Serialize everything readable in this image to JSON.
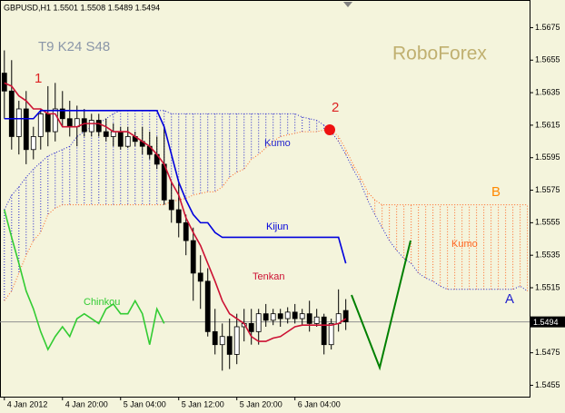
{
  "chart_data": {
    "type": "candlestick",
    "title": "GBPUSD,H1  1.5501 1.5508 1.5489 1.5494",
    "xlim": [
      -0.6,
      72.3
    ],
    "xticks": [
      {
        "value": 0,
        "label": "4 Jan 2012"
      },
      {
        "value": 8,
        "label": "4 Jan 20:00"
      },
      {
        "value": 16,
        "label": "5 Jan 04:00"
      },
      {
        "value": 24,
        "label": "5 Jan 12:00"
      },
      {
        "value": 32,
        "label": "5 Jan 20:00"
      },
      {
        "value": 40,
        "label": "6 Jan 04:00"
      }
    ],
    "ylim": [
      1.5448,
      1.5692
    ],
    "yticks": [
      1.5675,
      1.5655,
      1.5635,
      1.5615,
      1.5595,
      1.5575,
      1.5555,
      1.5535,
      1.5515,
      1.5475,
      1.5455
    ],
    "up_color": "#ffffff",
    "down_color": "#000000",
    "open": [
      1.5647,
      1.5636,
      1.5608,
      1.5625,
      1.56,
      1.5608,
      1.5622,
      1.5611,
      1.5625,
      1.5619,
      1.5614,
      1.5619,
      1.5611,
      1.5618,
      1.5611,
      1.5608,
      1.5611,
      1.5602,
      1.5608,
      1.5605,
      1.5602,
      1.5597,
      1.5591,
      1.5569,
      1.5563,
      1.5555,
      1.5544,
      1.5524,
      1.5519,
      1.5488,
      1.548,
      1.5485,
      1.5474,
      1.5491,
      1.5493,
      1.5488,
      1.5499,
      1.5495,
      1.5499,
      1.5496,
      1.55,
      1.5496,
      1.5499,
      1.5493,
      1.5497,
      1.548,
      1.5493,
      1.5501
    ],
    "high": [
      1.5661,
      1.5655,
      1.563,
      1.5636,
      1.5614,
      1.5625,
      1.5639,
      1.5641,
      1.5636,
      1.563,
      1.5627,
      1.5625,
      1.5622,
      1.5622,
      1.5619,
      1.5616,
      1.5614,
      1.5614,
      1.5611,
      1.5614,
      1.5611,
      1.5608,
      1.5614,
      1.558,
      1.558,
      1.556,
      1.5552,
      1.5535,
      1.5527,
      1.5502,
      1.5493,
      1.5496,
      1.5499,
      1.5502,
      1.5502,
      1.5502,
      1.5505,
      1.5502,
      1.5502,
      1.5503,
      1.5505,
      1.5502,
      1.5507,
      1.5502,
      1.5499,
      1.5496,
      1.5514,
      1.5508
    ],
    "low": [
      1.5619,
      1.56,
      1.5597,
      1.5591,
      1.5594,
      1.56,
      1.5602,
      1.5605,
      1.5614,
      1.5608,
      1.5602,
      1.5608,
      1.5608,
      1.5608,
      1.5605,
      1.5602,
      1.56,
      1.5601,
      1.5602,
      1.5597,
      1.5594,
      1.5588,
      1.5566,
      1.5555,
      1.5546,
      1.5535,
      1.5507,
      1.5502,
      1.5485,
      1.5474,
      1.5464,
      1.5465,
      1.5468,
      1.5482,
      1.548,
      1.548,
      1.5491,
      1.5492,
      1.5491,
      1.5493,
      1.5493,
      1.5492,
      1.5488,
      1.5491,
      1.5474,
      1.5477,
      1.5488,
      1.5489
    ],
    "close": [
      1.5636,
      1.5608,
      1.5625,
      1.56,
      1.5608,
      1.5622,
      1.5611,
      1.5625,
      1.5619,
      1.5614,
      1.5619,
      1.5611,
      1.5618,
      1.5611,
      1.5608,
      1.5611,
      1.5602,
      1.5608,
      1.5605,
      1.5602,
      1.5597,
      1.5591,
      1.5569,
      1.5563,
      1.5555,
      1.5544,
      1.5524,
      1.5519,
      1.5488,
      1.548,
      1.5485,
      1.5474,
      1.5491,
      1.5493,
      1.5488,
      1.5499,
      1.5495,
      1.5499,
      1.5496,
      1.55,
      1.5496,
      1.5499,
      1.5493,
      1.5497,
      1.548,
      1.5493,
      1.5499,
      1.5494
    ],
    "series": [
      {
        "name": "Tenkan",
        "color": "#cc1133",
        "values": [
          1.5641,
          1.5639,
          1.5633,
          1.563,
          1.5625,
          1.5625,
          1.5622,
          1.5622,
          1.5614,
          1.5614,
          1.5614,
          1.5616,
          1.5616,
          1.5616,
          1.5614,
          1.5611,
          1.5611,
          1.5611,
          1.5608,
          1.5605,
          1.5602,
          1.5597,
          1.5591,
          1.558,
          1.5572,
          1.5558,
          1.5549,
          1.5541,
          1.553,
          1.5519,
          1.5507,
          1.5499,
          1.5496,
          1.5493,
          1.5485,
          1.5482,
          1.5482,
          1.5484,
          1.5485,
          1.5488,
          1.5491,
          1.5492,
          1.5492,
          1.5492,
          1.5492,
          1.5492,
          1.5493,
          1.5496
        ]
      },
      {
        "name": "Kijun",
        "color": "#0000dd",
        "values": [
          1.5619,
          1.5619,
          1.5619,
          1.5619,
          1.5619,
          1.5624,
          1.5624,
          1.5624,
          1.5624,
          1.5624,
          1.5624,
          1.5624,
          1.5624,
          1.5624,
          1.5624,
          1.5624,
          1.5624,
          1.5624,
          1.5624,
          1.5624,
          1.5624,
          1.5624,
          1.5614,
          1.5597,
          1.558,
          1.5569,
          1.556,
          1.5555,
          1.5555,
          1.5549,
          1.5546,
          1.5546,
          1.5546,
          1.5546,
          1.5546,
          1.5546,
          1.5546,
          1.5546,
          1.5546,
          1.5546,
          1.5546,
          1.5546,
          1.5546,
          1.5546,
          1.5546,
          1.5546,
          1.5546,
          1.553
        ]
      },
      {
        "name": "Chinkou",
        "color": "#33cc33",
        "values": [
          1.5563,
          1.5546,
          1.553,
          1.5513,
          1.5502,
          1.5488,
          1.5477,
          1.5485,
          1.5491,
          1.5485,
          1.5496,
          1.5499,
          1.5496,
          1.5493,
          1.5502,
          1.5505,
          1.5499,
          1.5499,
          1.5507,
          1.5499,
          1.548,
          1.5502,
          1.5493
        ]
      }
    ],
    "cloud": {
      "senkou_a": {
        "name": "A",
        "color": "#2222cc",
        "values": [
          1.5563,
          1.5572,
          1.5577,
          1.5583,
          1.5588,
          1.5592,
          1.5596,
          1.5598,
          1.56,
          1.5602,
          1.5608,
          1.5611,
          1.5614,
          1.5616,
          1.5619,
          1.5622,
          1.5624,
          1.5624,
          1.5624,
          1.5624,
          1.5624,
          1.5624,
          1.5624,
          1.5622,
          1.5622,
          1.5622,
          1.5622,
          1.5622,
          1.5622,
          1.5622,
          1.5622,
          1.5622,
          1.5622,
          1.5622,
          1.5622,
          1.5622,
          1.5622,
          1.5622,
          1.5622,
          1.5622,
          1.5622,
          1.562,
          1.5619,
          1.5618,
          1.5615,
          1.5611,
          1.5605,
          1.5597,
          1.5588,
          1.558,
          1.5569,
          1.556,
          1.5552,
          1.5544,
          1.5538,
          1.5533,
          1.553,
          1.5524,
          1.5521,
          1.5519,
          1.5516,
          1.5514,
          1.5514,
          1.5514,
          1.5514,
          1.5514,
          1.5514,
          1.5514,
          1.5514,
          1.5514,
          1.5514,
          1.5516,
          1.5513
        ]
      },
      "senkou_b": {
        "name": "B",
        "color": "#ff6622",
        "values": [
          1.5507,
          1.5513,
          1.5524,
          1.5535,
          1.5544,
          1.5549,
          1.556,
          1.5564,
          1.5566,
          1.5566,
          1.5566,
          1.5566,
          1.5566,
          1.5566,
          1.5566,
          1.5566,
          1.5566,
          1.5566,
          1.5566,
          1.5566,
          1.5566,
          1.5566,
          1.5566,
          1.5568,
          1.5569,
          1.557,
          1.5572,
          1.5573,
          1.5574,
          1.5574,
          1.5577,
          1.5583,
          1.5586,
          1.5588,
          1.5594,
          1.5597,
          1.5601,
          1.5605,
          1.5608,
          1.5609,
          1.561,
          1.5611,
          1.5611,
          1.5611,
          1.5612,
          1.5612,
          1.5608,
          1.56,
          1.5591,
          1.5583,
          1.5574,
          1.5569,
          1.5566,
          1.5566,
          1.5566,
          1.5566,
          1.5566,
          1.5566,
          1.5566,
          1.5566,
          1.5566,
          1.5566,
          1.5566,
          1.5566,
          1.5566,
          1.5566,
          1.5566,
          1.5566,
          1.5566,
          1.5566,
          1.5566,
          1.5566,
          1.5566
        ]
      }
    },
    "bid": 1.5494,
    "annotations": [
      "T9 K24 S48",
      "RoboForex",
      "1",
      "2",
      "Kumo",
      "Kumo"
    ]
  }
}
